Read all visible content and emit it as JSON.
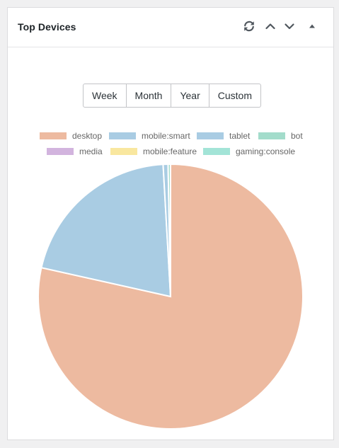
{
  "widget": {
    "title": "Top Devices",
    "controls": {
      "refresh_icon": "refresh-icon",
      "up_icon": "chevron-up-icon",
      "down_icon": "chevron-down-icon",
      "collapse_icon": "triangle-up-icon"
    }
  },
  "periods": [
    "Week",
    "Month",
    "Year",
    "Custom"
  ],
  "colors": {
    "desktop": "#edbaa0",
    "mobile_smart": "#a9cce3",
    "tablet": "#a9cce3",
    "bot": "#a3dccb",
    "media": "#d2b4de",
    "mobile_feature": "#f9e79f",
    "gaming_console": "#a3e4d7",
    "slice_border": "#ffffff"
  },
  "chart_data": {
    "type": "pie",
    "categories": [
      "desktop",
      "mobile:smart",
      "tablet",
      "bot",
      "media",
      "mobile:feature",
      "gaming:console"
    ],
    "values": [
      78.5,
      20.6,
      0.6,
      0.3,
      0,
      0,
      0
    ],
    "legend_position": "top"
  }
}
